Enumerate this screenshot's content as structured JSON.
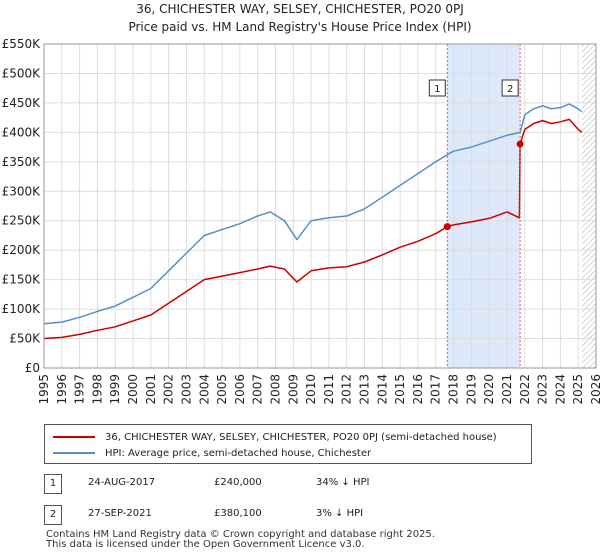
{
  "title": "36, CHICHESTER WAY, SELSEY, CHICHESTER, PO20 0PJ",
  "subtitle": "Price paid vs. HM Land Registry's House Price Index (HPI)",
  "colors": {
    "property": "#cc0000",
    "hpi": "#5b8ec9",
    "shade": "#dde8f8",
    "vline": "#e06060",
    "hatch": "#aaaaaa",
    "grid": "#dddddd"
  },
  "chart_data": {
    "type": "line",
    "title": "Price paid vs. HM Land Registry's House Price Index (HPI)",
    "xlabel": "",
    "ylabel": "",
    "xlim": [
      1995,
      2026
    ],
    "ylim": [
      0,
      550000
    ],
    "y_ticks": [
      0,
      50000,
      100000,
      150000,
      200000,
      250000,
      300000,
      350000,
      400000,
      450000,
      500000,
      550000
    ],
    "y_tick_labels": [
      "£0",
      "£50K",
      "£100K",
      "£150K",
      "£200K",
      "£250K",
      "£300K",
      "£350K",
      "£400K",
      "£450K",
      "£500K",
      "£550K"
    ],
    "x_ticks": [
      "1995",
      "1996",
      "1997",
      "1998",
      "1999",
      "2000",
      "2001",
      "2002",
      "2003",
      "2004",
      "2005",
      "2006",
      "2007",
      "2008",
      "2009",
      "2010",
      "2011",
      "2012",
      "2013",
      "2014",
      "2015",
      "2016",
      "2017",
      "2018",
      "2019",
      "2020",
      "2021",
      "2022",
      "2023",
      "2024",
      "2025",
      "2026"
    ],
    "shaded_period": [
      2017.65,
      2021.74
    ],
    "hatched_from": 2025.2,
    "series": [
      {
        "name": "36, CHICHESTER WAY, SELSEY, CHICHESTER, PO20 0PJ (semi-detached house)",
        "x": [
          1995,
          1996,
          1997,
          1998,
          1999,
          2000,
          2001,
          2002,
          2003,
          2004,
          2005,
          2006,
          2007,
          2007.7,
          2008.5,
          2009.2,
          2010,
          2011,
          2012,
          2013,
          2014,
          2015,
          2016,
          2017,
          2017.65,
          2018,
          2019,
          2020,
          2021,
          2021.7,
          2021.74,
          2022,
          2022.5,
          2023,
          2023.5,
          2024,
          2024.5,
          2025,
          2025.2
        ],
        "values": [
          50000,
          52000,
          57000,
          64000,
          70000,
          80000,
          90000,
          110000,
          130000,
          150000,
          156000,
          162000,
          168000,
          173000,
          168000,
          146000,
          165000,
          170000,
          172000,
          180000,
          192000,
          205000,
          215000,
          228000,
          240000,
          243000,
          248000,
          254000,
          265000,
          255000,
          380100,
          405000,
          415000,
          420000,
          415000,
          418000,
          422000,
          405000,
          400000
        ]
      },
      {
        "name": "HPI: Average price, semi-detached house, Chichester",
        "x": [
          1995,
          1996,
          1997,
          1998,
          1999,
          2000,
          2001,
          2002,
          2003,
          2004,
          2005,
          2006,
          2007,
          2007.7,
          2008.5,
          2009.2,
          2010,
          2011,
          2012,
          2013,
          2014,
          2015,
          2016,
          2017,
          2017.65,
          2018,
          2019,
          2020,
          2021,
          2021.74,
          2022,
          2022.5,
          2023,
          2023.5,
          2024,
          2024.5,
          2025,
          2025.2
        ],
        "values": [
          75000,
          78000,
          86000,
          96000,
          105000,
          120000,
          135000,
          165000,
          195000,
          225000,
          235000,
          245000,
          258000,
          265000,
          250000,
          218000,
          250000,
          255000,
          258000,
          270000,
          290000,
          310000,
          330000,
          350000,
          362000,
          368000,
          375000,
          385000,
          395000,
          400000,
          430000,
          440000,
          445000,
          440000,
          442000,
          448000,
          440000,
          435000
        ]
      }
    ],
    "annotations": [
      {
        "label": "1",
        "x": 2017.65,
        "value": 240000
      },
      {
        "label": "2",
        "x": 2021.74,
        "value": 380100
      }
    ]
  },
  "legend": {
    "property_label": "36, CHICHESTER WAY, SELSEY, CHICHESTER, PO20 0PJ (semi-detached house)",
    "hpi_label": "HPI: Average price, semi-detached house, Chichester"
  },
  "transactions": [
    {
      "num": "1",
      "date": "24-AUG-2017",
      "price": "£240,000",
      "hpi": "34% ↓ HPI"
    },
    {
      "num": "2",
      "date": "27-SEP-2021",
      "price": "£380,100",
      "hpi": "3% ↓ HPI"
    }
  ],
  "footer": {
    "line1": "Contains HM Land Registry data © Crown copyright and database right 2025.",
    "line2": "This data is licensed under the Open Government Licence v3.0."
  }
}
